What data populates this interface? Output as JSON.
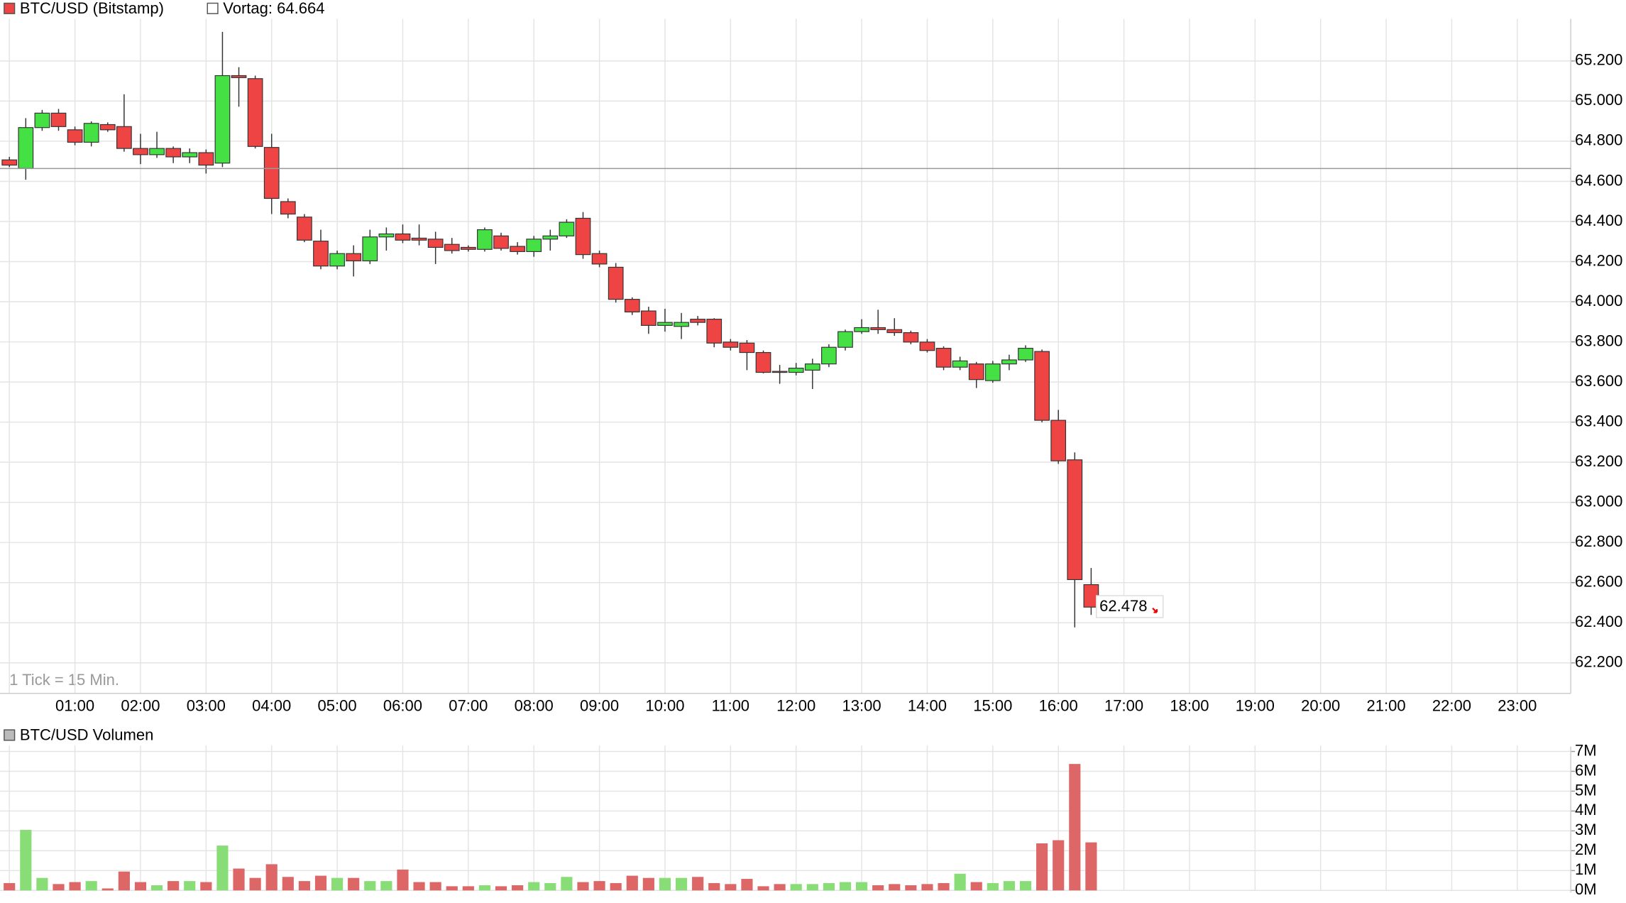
{
  "chart_data": [
    {
      "type": "candlestick",
      "title": "BTC/USD (Bitstamp)",
      "note": "1 Tick = 15 Min.",
      "up_color": "#44e044",
      "down_color": "#ee4444",
      "reference_line": {
        "value": 64664,
        "label": "Vortag: 64.664"
      },
      "last_price": {
        "value": 62478,
        "label": "62.478"
      },
      "x": [
        "00:00",
        "00:15",
        "00:30",
        "00:45",
        "01:00",
        "01:15",
        "01:30",
        "01:45",
        "02:00",
        "02:15",
        "02:30",
        "02:45",
        "03:00",
        "03:15",
        "03:30",
        "03:45",
        "04:00",
        "04:15",
        "04:30",
        "04:45",
        "05:00",
        "05:15",
        "05:30",
        "05:45",
        "06:00",
        "06:15",
        "06:30",
        "06:45",
        "07:00",
        "07:15",
        "07:30",
        "07:45",
        "08:00",
        "08:15",
        "08:30",
        "08:45",
        "09:00",
        "09:15",
        "09:30",
        "09:45",
        "10:00",
        "10:15",
        "10:30",
        "10:45",
        "11:00",
        "11:15",
        "11:30",
        "11:45",
        "12:00",
        "12:15",
        "12:30",
        "12:45",
        "13:00",
        "13:15",
        "13:30",
        "13:45",
        "14:00",
        "14:15",
        "14:30",
        "14:45",
        "15:00",
        "15:15",
        "15:30",
        "15:45",
        "16:00",
        "16:15",
        "16:30"
      ],
      "open": [
        64707,
        64665,
        64868,
        64940,
        64857,
        64795,
        64883,
        64873,
        64764,
        64733,
        64764,
        64722,
        64743,
        64691,
        65127,
        65112,
        64769,
        64499,
        64422,
        64302,
        64178,
        64240,
        64204,
        64323,
        64338,
        64317,
        64312,
        64286,
        64271,
        64261,
        64328,
        64276,
        64250,
        64312,
        64328,
        64416,
        64240,
        64172,
        64012,
        63954,
        63882,
        63877,
        63913,
        63913,
        63799,
        63794,
        63747,
        63653,
        63648,
        63659,
        63690,
        63773,
        63851,
        63871,
        63861,
        63846,
        63799,
        63768,
        63674,
        63690,
        63607,
        63690,
        63710,
        63752,
        63409,
        63212,
        62590
      ],
      "high": [
        64722,
        64915,
        64956,
        64961,
        64873,
        64899,
        64894,
        65034,
        64837,
        64847,
        64774,
        64764,
        64759,
        65345,
        65169,
        65127,
        64837,
        64515,
        64437,
        64359,
        64255,
        64281,
        64359,
        64370,
        64385,
        64385,
        64349,
        64318,
        64281,
        64370,
        64344,
        64297,
        64328,
        64359,
        64411,
        64447,
        64255,
        64193,
        64022,
        63975,
        63965,
        63944,
        63929,
        63918,
        63814,
        63809,
        63757,
        63685,
        63695,
        63716,
        63788,
        63861,
        63913,
        63960,
        63918,
        63856,
        63814,
        63778,
        63726,
        63700,
        63705,
        63736,
        63783,
        63762,
        63461,
        63249,
        62673
      ],
      "low": [
        64671,
        64608,
        64852,
        64852,
        64780,
        64774,
        64847,
        64748,
        64686,
        64717,
        64691,
        64691,
        64639,
        64671,
        64972,
        64764,
        64437,
        64416,
        64297,
        64162,
        64162,
        64126,
        64188,
        64255,
        64292,
        64281,
        64188,
        64240,
        64250,
        64250,
        64255,
        64235,
        64224,
        64255,
        64318,
        64214,
        64172,
        63996,
        63934,
        63840,
        63851,
        63814,
        63882,
        63773,
        63757,
        63659,
        63643,
        63591,
        63633,
        63565,
        63674,
        63757,
        63840,
        63840,
        63830,
        63788,
        63747,
        63659,
        63659,
        63570,
        63596,
        63659,
        63700,
        63399,
        63192,
        62377,
        62439
      ],
      "close": [
        64681,
        64868,
        64940,
        64873,
        64795,
        64889,
        64857,
        64764,
        64733,
        64764,
        64722,
        64743,
        64681,
        65127,
        65117,
        64774,
        64515,
        64437,
        64307,
        64178,
        64240,
        64204,
        64323,
        64338,
        64307,
        64307,
        64271,
        64255,
        64261,
        64359,
        64266,
        64250,
        64312,
        64328,
        64396,
        64235,
        64188,
        64012,
        63949,
        63882,
        63897,
        63897,
        63897,
        63794,
        63773,
        63747,
        63648,
        63648,
        63669,
        63690,
        63773,
        63851,
        63871,
        63861,
        63846,
        63799,
        63757,
        63674,
        63705,
        63612,
        63690,
        63710,
        63768,
        63409,
        63207,
        62615,
        62478
      ],
      "ylim": [
        62100,
        65410
      ],
      "yticks": [
        {
          "value": 62200,
          "label": "62.200"
        },
        {
          "value": 62400,
          "label": "62.400"
        },
        {
          "value": 62600,
          "label": "62.600"
        },
        {
          "value": 62800,
          "label": "62.800"
        },
        {
          "value": 63000,
          "label": "63.000"
        },
        {
          "value": 63200,
          "label": "63.200"
        },
        {
          "value": 63400,
          "label": "63.400"
        },
        {
          "value": 63600,
          "label": "63.600"
        },
        {
          "value": 63800,
          "label": "63.800"
        },
        {
          "value": 64000,
          "label": "64.000"
        },
        {
          "value": 64200,
          "label": "64.200"
        },
        {
          "value": 64400,
          "label": "64.400"
        },
        {
          "value": 64600,
          "label": "64.600"
        },
        {
          "value": 64800,
          "label": "64.800"
        },
        {
          "value": 65000,
          "label": "65.000"
        },
        {
          "value": 65200,
          "label": "65.200"
        }
      ],
      "xticks": [
        "01:00",
        "02:00",
        "03:00",
        "04:00",
        "05:00",
        "06:00",
        "07:00",
        "08:00",
        "09:00",
        "10:00",
        "11:00",
        "12:00",
        "13:00",
        "14:00",
        "15:00",
        "16:00",
        "17:00",
        "18:00",
        "19:00",
        "20:00",
        "21:00",
        "22:00",
        "23:00"
      ],
      "grid": true
    },
    {
      "type": "bar",
      "title": "BTC/USD Volumen",
      "up_color": "#88dd77",
      "down_color": "#dd6666",
      "values": [
        0.37,
        3.05,
        0.63,
        0.32,
        0.42,
        0.47,
        0.1,
        0.95,
        0.42,
        0.26,
        0.47,
        0.47,
        0.42,
        2.26,
        1.1,
        0.63,
        1.32,
        0.68,
        0.47,
        0.74,
        0.63,
        0.63,
        0.47,
        0.47,
        1.05,
        0.42,
        0.42,
        0.21,
        0.21,
        0.26,
        0.21,
        0.26,
        0.42,
        0.37,
        0.68,
        0.42,
        0.47,
        0.37,
        0.74,
        0.63,
        0.63,
        0.63,
        0.68,
        0.37,
        0.32,
        0.58,
        0.21,
        0.32,
        0.32,
        0.32,
        0.37,
        0.42,
        0.42,
        0.26,
        0.32,
        0.26,
        0.32,
        0.37,
        0.84,
        0.42,
        0.37,
        0.47,
        0.47,
        2.37,
        2.53,
        6.37,
        2.42
      ],
      "ylim": [
        0,
        7.3
      ],
      "yticks": [
        {
          "value": 0,
          "label": "0M"
        },
        {
          "value": 1,
          "label": "1M"
        },
        {
          "value": 2,
          "label": "2M"
        },
        {
          "value": 3,
          "label": "3M"
        },
        {
          "value": 4,
          "label": "4M"
        },
        {
          "value": 5,
          "label": "5M"
        },
        {
          "value": 6,
          "label": "6M"
        },
        {
          "value": 7,
          "label": "7M"
        }
      ],
      "grid": true
    }
  ]
}
